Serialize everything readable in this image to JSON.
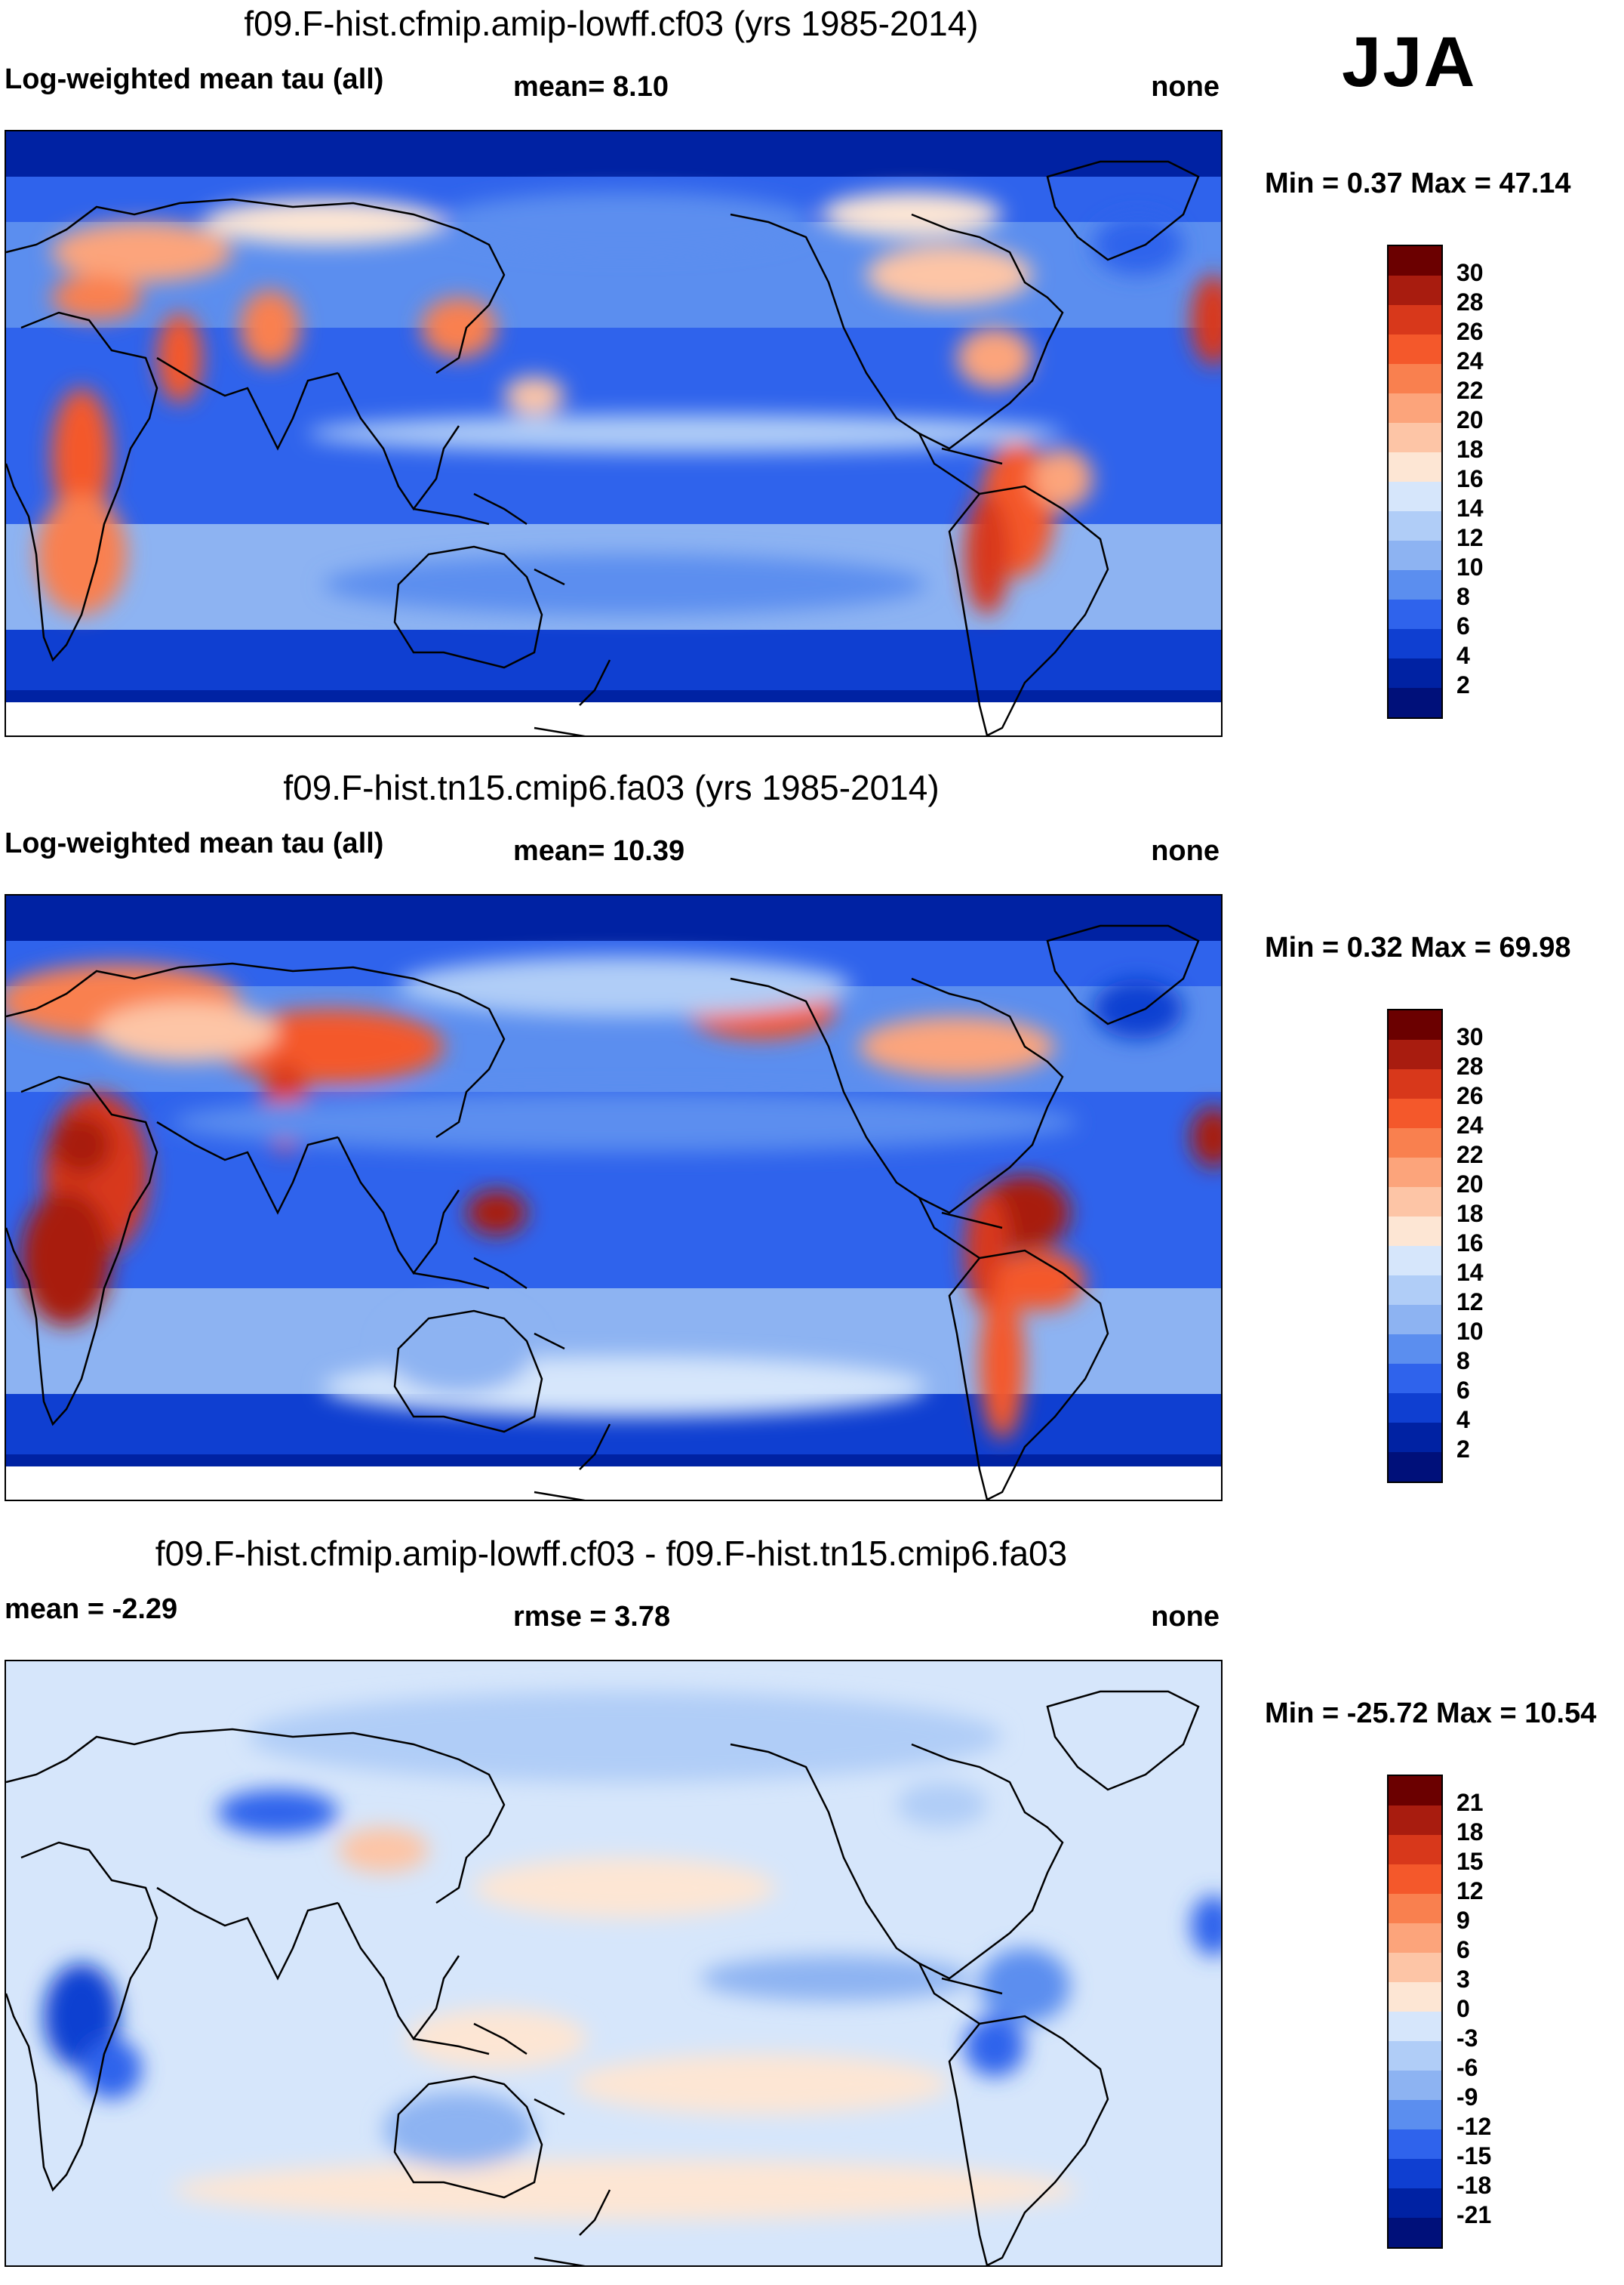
{
  "season": "JJA",
  "panels": [
    {
      "id": "model-a",
      "title": "f09.F-hist.cfmip.amip-lowff.cf03 (yrs 1985-2014)",
      "left_label": "Log-weighted mean tau (all)",
      "center_label": "mean=   8.10",
      "right_label": "none",
      "minmax": "Min =   0.37 Max =  47.14",
      "stats": {
        "mean": 8.1,
        "min": 0.37,
        "max": 47.14
      },
      "colorbar": {
        "ticks": [
          "30",
          "28",
          "26",
          "24",
          "22",
          "20",
          "18",
          "16",
          "14",
          "12",
          "10",
          "8",
          "6",
          "4",
          "2"
        ],
        "colors": [
          "#6b0000",
          "#a81c0f",
          "#d8381b",
          "#f4582b",
          "#f9804f",
          "#fca47b",
          "#fdc5a6",
          "#fde6d4",
          "#d6e6fb",
          "#b0cdf7",
          "#8db3f2",
          "#5b8eef",
          "#2f63ec",
          "#0f3fd1",
          "#0022a3",
          "#00107a"
        ]
      }
    },
    {
      "id": "model-b",
      "title": "f09.F-hist.tn15.cmip6.fa03 (yrs 1985-2014)",
      "left_label": "Log-weighted mean tau (all)",
      "center_label": "mean=  10.39",
      "right_label": "none",
      "minmax": "Min =   0.32 Max =  69.98",
      "stats": {
        "mean": 10.39,
        "min": 0.32,
        "max": 69.98
      },
      "colorbar": {
        "ticks": [
          "30",
          "28",
          "26",
          "24",
          "22",
          "20",
          "18",
          "16",
          "14",
          "12",
          "10",
          "8",
          "6",
          "4",
          "2"
        ],
        "colors": [
          "#6b0000",
          "#a81c0f",
          "#d8381b",
          "#f4582b",
          "#f9804f",
          "#fca47b",
          "#fdc5a6",
          "#fde6d4",
          "#d6e6fb",
          "#b0cdf7",
          "#8db3f2",
          "#5b8eef",
          "#2f63ec",
          "#0f3fd1",
          "#0022a3",
          "#00107a"
        ]
      }
    },
    {
      "id": "difference",
      "title": "f09.F-hist.cfmip.amip-lowff.cf03 - f09.F-hist.tn15.cmip6.fa03",
      "left_label": "mean =  -2.29",
      "center_label": "rmse =    3.78",
      "right_label": "none",
      "minmax": "Min = -25.72 Max =  10.54",
      "stats": {
        "mean": -2.29,
        "rmse": 3.78,
        "min": -25.72,
        "max": 10.54
      },
      "colorbar": {
        "ticks": [
          "21",
          "18",
          "15",
          "12",
          "9",
          "6",
          "3",
          "0",
          "-3",
          "-6",
          "-9",
          "-12",
          "-15",
          "-18",
          "-21"
        ],
        "colors": [
          "#6b0000",
          "#a81c0f",
          "#d8381b",
          "#f4582b",
          "#f9804f",
          "#fca47b",
          "#fdc5a6",
          "#fde6d4",
          "#d6e6fb",
          "#b0cdf7",
          "#8db3f2",
          "#5b8eef",
          "#2f63ec",
          "#0f3fd1",
          "#0022a3",
          "#00107a"
        ]
      }
    }
  ]
}
